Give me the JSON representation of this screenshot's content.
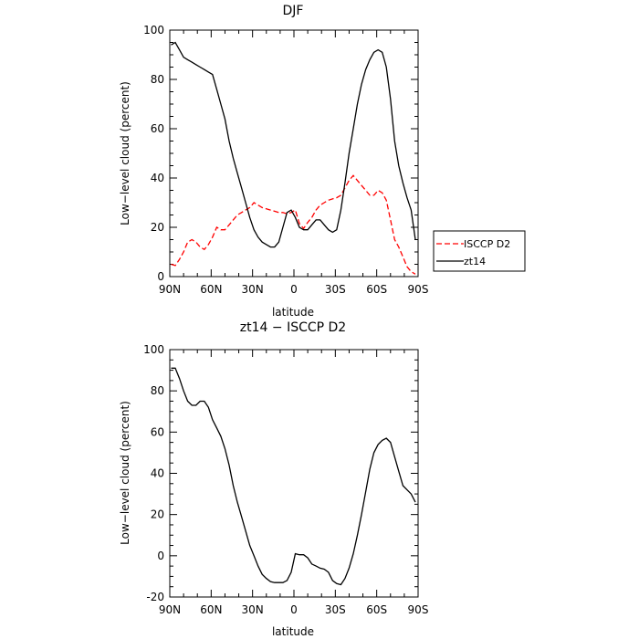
{
  "chart_data": [
    {
      "type": "line",
      "title": "DJF",
      "xlabel": "latitude",
      "ylabel": "Low−level cloud (percent)",
      "x_tick_labels": [
        "90N",
        "60N",
        "30N",
        "0",
        "30S",
        "60S",
        "90S"
      ],
      "x_tick_values": [
        -90,
        -60,
        -30,
        0,
        30,
        60,
        90
      ],
      "xlim": [
        -90,
        90
      ],
      "y_ticks": [
        0,
        20,
        40,
        60,
        80,
        100
      ],
      "ylim": [
        0,
        100
      ],
      "legend_placement": "outside-right",
      "series": [
        {
          "name": "ISCCP D2",
          "color": "#ff0000",
          "dash": "dashed",
          "x": [
            -89,
            -86,
            -83,
            -80,
            -77,
            -74,
            -71,
            -68,
            -65,
            -62,
            -59,
            -56,
            -53,
            -50,
            -47,
            -44,
            -41,
            -38,
            -35,
            -32,
            -29,
            -26,
            -23,
            -20,
            -17,
            -14,
            -11,
            -8,
            -5,
            -2,
            1,
            4,
            7,
            10,
            13,
            16,
            19,
            22,
            25,
            28,
            31,
            34,
            37,
            40,
            43,
            46,
            49,
            52,
            55,
            58,
            61,
            64,
            67,
            70,
            73,
            76,
            79,
            82,
            85,
            88
          ],
          "y": [
            5,
            4.5,
            7,
            10,
            14,
            15,
            14,
            12,
            11,
            13,
            16,
            20,
            19,
            19,
            21,
            23,
            25,
            26,
            27,
            28,
            30,
            29,
            28,
            27.5,
            27,
            26.5,
            26,
            26,
            25.5,
            26,
            27,
            21.5,
            19.5,
            22,
            24,
            27,
            29,
            30,
            31,
            31.5,
            32,
            33,
            36,
            39,
            41,
            39,
            37,
            35,
            33,
            33,
            35,
            34,
            31,
            23,
            15,
            12,
            8,
            4,
            2,
            1
          ]
        },
        {
          "name": "zt14",
          "color": "#000000",
          "dash": "solid",
          "x": [
            -89,
            -86,
            -83,
            -80,
            -77,
            -74,
            -71,
            -68,
            -65,
            -62,
            -59,
            -56,
            -53,
            -50,
            -47,
            -44,
            -41,
            -38,
            -35,
            -32,
            -29,
            -26,
            -23,
            -20,
            -17,
            -14,
            -11,
            -8,
            -5,
            -2,
            1,
            4,
            7,
            10,
            13,
            16,
            19,
            22,
            25,
            28,
            31,
            34,
            37,
            40,
            43,
            46,
            49,
            52,
            55,
            58,
            61,
            64,
            67,
            70,
            73,
            76,
            79,
            82,
            85,
            88
          ],
          "y": [
            94,
            95,
            92,
            89,
            88,
            87,
            86,
            85,
            84,
            83,
            82,
            76,
            70,
            64,
            55,
            48,
            42,
            36,
            30,
            24,
            19,
            16,
            14,
            13,
            12,
            12,
            14,
            20,
            26,
            27,
            24,
            20,
            19,
            19,
            21,
            23,
            23,
            21,
            19,
            18,
            19,
            27,
            38,
            50,
            60,
            70,
            78,
            84,
            88,
            91,
            92,
            91,
            85,
            72,
            55,
            45,
            38,
            32,
            27,
            15
          ]
        }
      ]
    },
    {
      "type": "line",
      "title": "zt14 − ISCCP D2",
      "xlabel": "latitude",
      "ylabel": "Low−level cloud (percent)",
      "x_tick_labels": [
        "90N",
        "60N",
        "30N",
        "0",
        "30S",
        "60S",
        "90S"
      ],
      "x_tick_values": [
        -90,
        -60,
        -30,
        0,
        30,
        60,
        90
      ],
      "xlim": [
        -90,
        90
      ],
      "y_ticks": [
        -20,
        0,
        20,
        40,
        60,
        80,
        100
      ],
      "ylim": [
        -20,
        100
      ],
      "series": [
        {
          "color": "#000000",
          "dash": "solid",
          "x": [
            -89,
            -86,
            -83,
            -80,
            -77,
            -74,
            -71,
            -68,
            -65,
            -62,
            -59,
            -56,
            -53,
            -50,
            -47,
            -44,
            -41,
            -38,
            -35,
            -32,
            -29,
            -26,
            -23,
            -20,
            -17,
            -14,
            -11,
            -8,
            -5,
            -2,
            1,
            4,
            7,
            10,
            13,
            16,
            19,
            22,
            25,
            28,
            31,
            34,
            37,
            40,
            43,
            46,
            49,
            52,
            55,
            58,
            61,
            64,
            67,
            70,
            73,
            76,
            79,
            82,
            85,
            88
          ],
          "y": [
            91,
            91,
            86,
            80,
            75,
            73,
            73,
            75,
            75,
            72,
            66,
            62,
            58,
            52,
            44,
            34,
            26,
            19,
            12,
            5,
            0,
            -5,
            -9,
            -11,
            -12.5,
            -13,
            -13,
            -13,
            -12,
            -8,
            1,
            0.5,
            0.5,
            -1,
            -4,
            -5,
            -6,
            -6.5,
            -8,
            -12,
            -13.5,
            -14,
            -11,
            -6,
            1,
            10,
            20,
            31,
            42,
            50,
            54,
            56,
            57,
            55,
            48,
            41,
            34,
            32,
            30,
            26
          ]
        }
      ]
    }
  ],
  "legend": {
    "items": [
      {
        "label": "ISCCP D2",
        "color": "#ff0000",
        "dash": "dashed"
      },
      {
        "label": "zt14",
        "color": "#000000",
        "dash": "solid"
      }
    ]
  }
}
